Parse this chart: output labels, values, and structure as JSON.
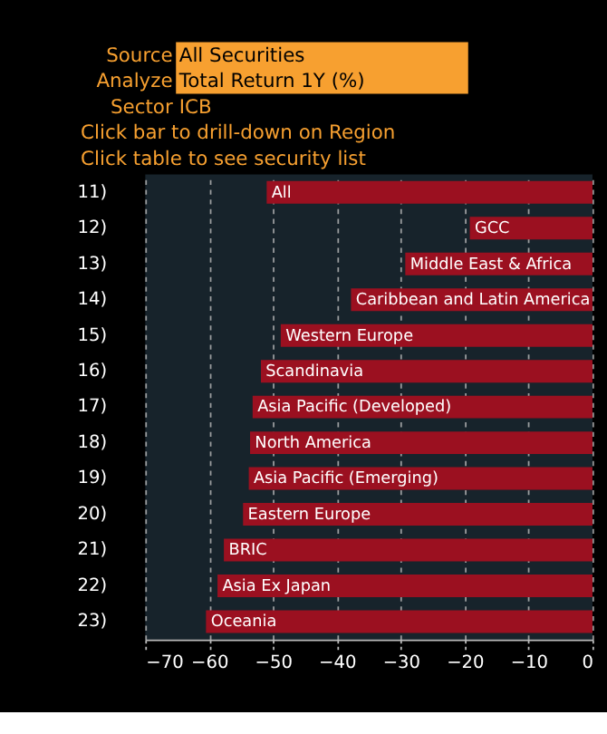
{
  "chart_data": {
    "type": "bar",
    "orientation": "horizontal",
    "title": "Click bar to drill-down on Region",
    "subtitle": "Click table to see security list",
    "categories": [
      "All",
      "GCC",
      "Middle East & Africa",
      "Caribbean and Latin America",
      "Western Europe",
      "Scandinavia",
      "Asia Pacific (Developed)",
      "North America",
      "Asia Pacific (Emerging)",
      "Eastern Europe",
      "BRIC",
      "Asia Ex Japan",
      "Oceania"
    ],
    "values": [
      -51.0,
      -19.2,
      -29.3,
      -37.8,
      -48.8,
      -51.9,
      -53.2,
      -53.6,
      -53.8,
      -54.7,
      -57.7,
      -58.7,
      -60.5
    ],
    "color": "#9b1020",
    "xlim": [
      -70,
      0
    ],
    "xticks": [
      -70,
      -60,
      -50,
      -40,
      -30,
      -20,
      -10,
      0
    ],
    "grid": "x",
    "annotations": [
      "Source",
      "All Securities",
      "Analyze",
      "Total Return 1Y (%)",
      "Sector",
      "ICB",
      "11)",
      "12)",
      "13)",
      "14)",
      "15)",
      "16)",
      "17)",
      "18)",
      "19)",
      "20)",
      "21)",
      "22)",
      "23)"
    ]
  }
}
